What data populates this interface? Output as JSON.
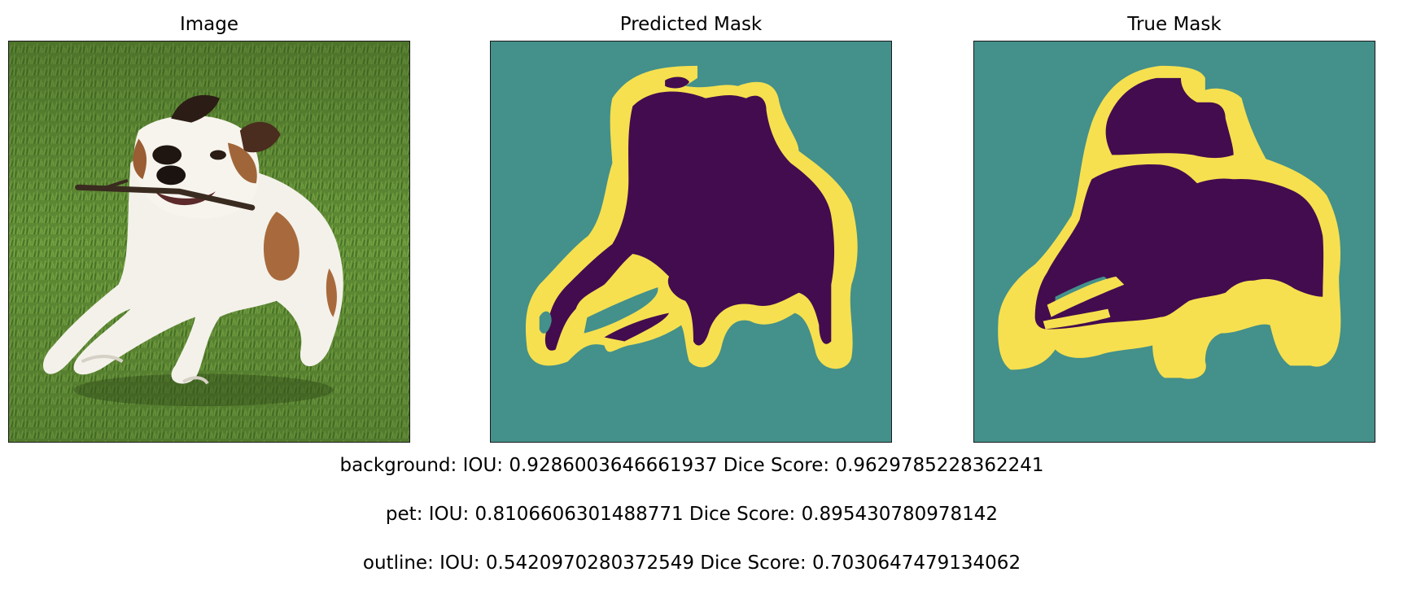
{
  "panels": {
    "image_title": "Image",
    "predicted_title": "Predicted Mask",
    "true_title": "True Mask"
  },
  "metrics": [
    "background: IOU: 0.9286003646661937 Dice Score: 0.9629785228362241",
    "pet: IOU: 0.8106606301488771 Dice Score: 0.895430780978142",
    "outline: IOU: 0.5420970280372549 Dice Score: 0.7030647479134062"
  ],
  "colors": {
    "background_class": "#44908b",
    "pet_class": "#430c4f",
    "outline_class": "#f6e04f",
    "grass": "#5f8a35"
  }
}
